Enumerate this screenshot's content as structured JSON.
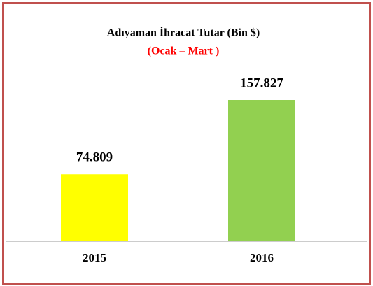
{
  "chart_data": {
    "type": "bar",
    "title": "Adıyaman İhracat Tutar  (Bin $)",
    "subtitle": "(Ocak – Mart )",
    "categories": [
      "2015",
      "2016"
    ],
    "values": [
      74809,
      157827
    ],
    "value_labels": [
      "74.809",
      "157.827"
    ],
    "colors": [
      "#ffff00",
      "#92d050"
    ]
  }
}
